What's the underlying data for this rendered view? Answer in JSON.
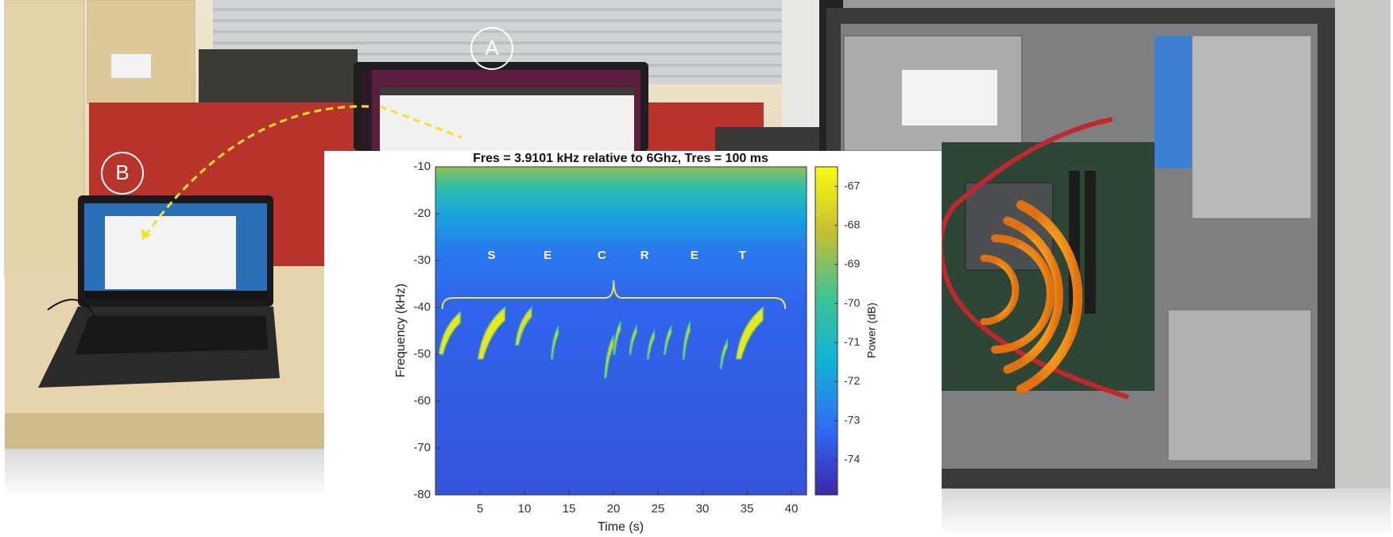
{
  "photo_labels": {
    "a": "A",
    "b": "B"
  },
  "chart_data": {
    "type": "spectrogram",
    "title": "Fres = 3.9101 kHz relative to 6Ghz, Tres = 100 ms",
    "x_label": "Time (s)",
    "y_label": "Frequency (kHz)",
    "colorbar_label": "Power (dB)",
    "xlim": [
      0,
      41.7
    ],
    "ylim": [
      -80,
      -10
    ],
    "xticks": [
      5,
      10,
      15,
      20,
      25,
      30,
      35,
      40
    ],
    "yticks": [
      -10,
      -20,
      -30,
      -40,
      -50,
      -60,
      -70,
      -80
    ],
    "clim": [
      -74.9,
      -66.5
    ],
    "cticks": [
      -67,
      -68,
      -69,
      -70,
      -71,
      -72,
      -73,
      -74
    ],
    "background": {
      "frequency": [
        -10,
        -14,
        -20,
        -28,
        -40,
        -80
      ],
      "power": [
        -68.8,
        -70.2,
        -71.8,
        -72.9,
        -73.4,
        -73.8
      ]
    },
    "bursts": [
      {
        "t": [
          0.4,
          2.8
        ],
        "f": [
          -41,
          -50
        ],
        "power": -67
      },
      {
        "t": [
          4.8,
          7.8
        ],
        "f": [
          -40,
          -51
        ],
        "power": -67
      },
      {
        "t": [
          9.0,
          10.8
        ],
        "f": [
          -40,
          -48
        ],
        "power": -67.3
      },
      {
        "t": [
          13.0,
          13.8
        ],
        "f": [
          -44,
          -51
        ],
        "power": -67.6
      },
      {
        "t": [
          19.0,
          20.0
        ],
        "f": [
          -46,
          -55
        ],
        "power": -67.6
      },
      {
        "t": [
          20.0,
          20.8
        ],
        "f": [
          -43,
          -50
        ],
        "power": -67.6
      },
      {
        "t": [
          21.8,
          22.6
        ],
        "f": [
          -44,
          -50
        ],
        "power": -67.6
      },
      {
        "t": [
          23.8,
          24.6
        ],
        "f": [
          -45,
          -51
        ],
        "power": -67.6
      },
      {
        "t": [
          25.7,
          26.5
        ],
        "f": [
          -44,
          -50
        ],
        "power": -67.6
      },
      {
        "t": [
          27.8,
          28.6
        ],
        "f": [
          -43,
          -51
        ],
        "power": -67.6
      },
      {
        "t": [
          32.0,
          32.8
        ],
        "f": [
          -47,
          -53
        ],
        "power": -67.6
      },
      {
        "t": [
          33.8,
          36.8
        ],
        "f": [
          -40,
          -51
        ],
        "power": -67
      }
    ],
    "annotations": [
      {
        "text": "S",
        "x": 6.3,
        "y": -29
      },
      {
        "text": "E",
        "x": 12.6,
        "y": -29
      },
      {
        "text": "C",
        "x": 18.7,
        "y": -29
      },
      {
        "text": "R",
        "x": 23.5,
        "y": -29
      },
      {
        "text": "E",
        "x": 29.1,
        "y": -29
      },
      {
        "text": "T",
        "x": 34.5,
        "y": -29
      }
    ]
  }
}
